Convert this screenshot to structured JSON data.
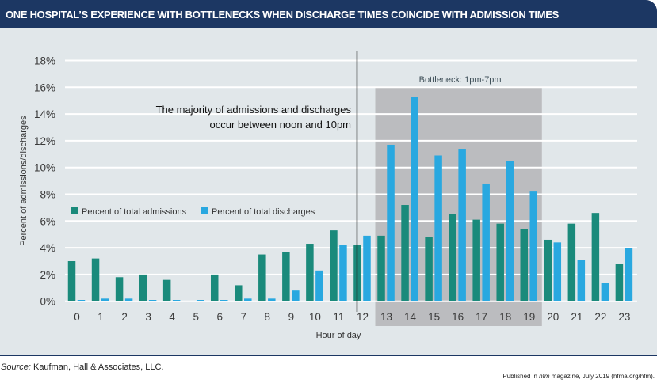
{
  "header": {
    "title": "ONE HOSPITAL’S EXPERIENCE WITH BOTTLENECKS WHEN DISCHARGE TIMES COINCIDE WITH ADMISSION TIMES"
  },
  "colors": {
    "header_bg": "#1c3763",
    "panel_bg": "#e1e7ea",
    "admissions": "#1a8a7b",
    "discharges": "#29a8e0",
    "bottleneck_band": "#bbbcbf"
  },
  "chart_data": {
    "type": "bar",
    "title": "ONE HOSPITAL’S EXPERIENCE WITH BOTTLENECKS WHEN DISCHARGE TIMES COINCIDE WITH ADMISSION TIMES",
    "xlabel": "Hour of day",
    "ylabel": "Percent of admissions/discharges",
    "ylim": [
      0,
      18
    ],
    "yticks": [
      "0%",
      "2%",
      "4%",
      "6%",
      "8%",
      "10%",
      "12%",
      "14%",
      "16%",
      "18%"
    ],
    "ytick_values": [
      0,
      2,
      4,
      6,
      8,
      10,
      12,
      14,
      16,
      18
    ],
    "grid": true,
    "legend_position": "middle-left",
    "categories": [
      "0",
      "1",
      "2",
      "3",
      "4",
      "5",
      "6",
      "7",
      "8",
      "9",
      "10",
      "11",
      "12",
      "13",
      "14",
      "15",
      "16",
      "17",
      "18",
      "19",
      "20",
      "21",
      "22",
      "23"
    ],
    "series": [
      {
        "name": "Percent of total admissions",
        "color": "#1a8a7b",
        "values": [
          3.0,
          3.2,
          1.8,
          2.0,
          1.6,
          0.0,
          2.0,
          1.2,
          3.5,
          3.7,
          4.3,
          5.3,
          4.2,
          4.9,
          7.2,
          4.8,
          6.5,
          6.1,
          5.8,
          5.4,
          4.6,
          5.8,
          6.6,
          2.8
        ]
      },
      {
        "name": "Percent of total discharges",
        "color": "#29a8e0",
        "values": [
          0.1,
          0.2,
          0.2,
          0.1,
          0.1,
          0.1,
          0.1,
          0.2,
          0.2,
          0.8,
          2.3,
          4.2,
          4.9,
          11.7,
          15.3,
          10.9,
          11.4,
          8.8,
          10.5,
          8.2,
          4.4,
          3.1,
          1.4,
          4.0
        ]
      }
    ],
    "annotations": {
      "bottleneck_label": "Bottleneck: 1pm-7pm",
      "bottleneck_range": [
        "13",
        "19"
      ],
      "divider_at": "12",
      "note_line1": "The majority of admissions and discharges",
      "note_line2": "occur between noon and 10pm"
    }
  },
  "footer": {
    "source_label": "Source:",
    "source_text": " Kaufman, Hall & Associates, LLC.",
    "pub_prefix": "Published in ",
    "pub_mag": "hfm",
    "pub_suffix": " magazine, July 2019 (hfma.org/hfm)."
  }
}
